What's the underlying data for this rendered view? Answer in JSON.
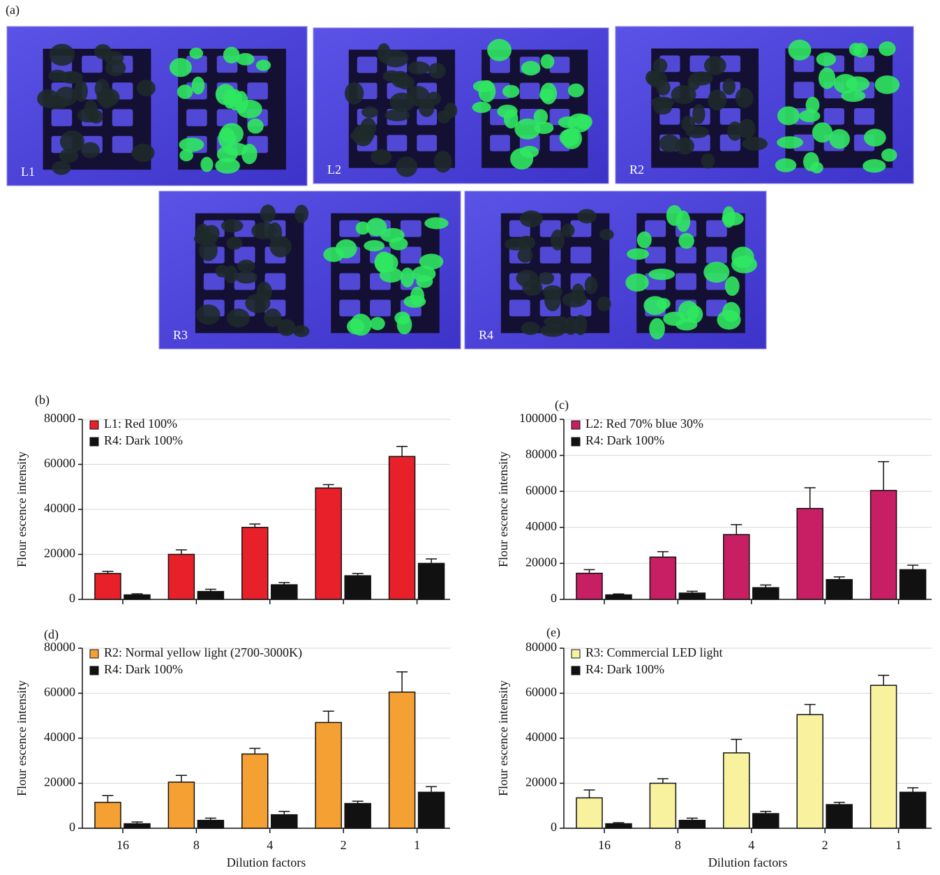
{
  "figure_label": "(a)",
  "photos": [
    {
      "label": "L1"
    },
    {
      "label": "L2"
    },
    {
      "label": "R2"
    },
    {
      "label": "R3"
    },
    {
      "label": "R4"
    }
  ],
  "chart_data": [
    {
      "type": "bar",
      "panel_label": "(b)",
      "ylabel": "Flour escence intensity",
      "categories": [
        null,
        null,
        null,
        null,
        null
      ],
      "series": [
        {
          "name": "L1: Red 100%",
          "color": "#e8202a",
          "values": [
            11500,
            20000,
            32000,
            49500,
            63500
          ],
          "errors": [
            1000,
            2000,
            1500,
            1500,
            4500
          ]
        },
        {
          "name": "R4: Dark 100%",
          "color": "#111111",
          "values": [
            2000,
            3500,
            6500,
            10500,
            16000
          ],
          "errors": [
            500,
            1000,
            1000,
            1000,
            2000
          ]
        }
      ],
      "ylim": [
        0,
        80000
      ],
      "yticks": [
        0,
        20000,
        40000,
        60000,
        80000
      ],
      "grid": true,
      "legend": "upper left"
    },
    {
      "type": "bar",
      "panel_label": "(c)",
      "ylabel": "Flour escence intensity",
      "categories": [
        null,
        null,
        null,
        null,
        null
      ],
      "series": [
        {
          "name": "L2: Red 70% blue 30%",
          "color": "#c81e63",
          "values": [
            14500,
            23500,
            36000,
            50500,
            60500
          ],
          "errors": [
            2000,
            3000,
            5500,
            11500,
            16000
          ]
        },
        {
          "name": "R4: Dark 100%",
          "color": "#111111",
          "values": [
            2500,
            3500,
            6500,
            11000,
            16500
          ],
          "errors": [
            500,
            1000,
            1500,
            1500,
            2500
          ]
        }
      ],
      "ylim": [
        0,
        100000
      ],
      "yticks": [
        0,
        20000,
        40000,
        60000,
        80000,
        100000
      ],
      "grid": true,
      "legend": "upper left"
    },
    {
      "type": "bar",
      "panel_label": "(d)",
      "ylabel": "Flour escence intensity",
      "xlabel": "Dilution factors",
      "categories": [
        "16",
        "8",
        "4",
        "2",
        "1"
      ],
      "series": [
        {
          "name": "R2: Normal yellow light (2700-3000K)",
          "color": "#f5a033",
          "values": [
            11500,
            20500,
            33000,
            47000,
            60500
          ],
          "errors": [
            3000,
            3000,
            2500,
            5000,
            9000
          ]
        },
        {
          "name": "R4: Dark 100%",
          "color": "#111111",
          "values": [
            2000,
            3500,
            6000,
            11000,
            16000
          ],
          "errors": [
            800,
            1000,
            1500,
            1000,
            2500
          ]
        }
      ],
      "ylim": [
        0,
        80000
      ],
      "yticks": [
        0,
        20000,
        40000,
        60000,
        80000
      ],
      "grid": true,
      "legend": "upper left"
    },
    {
      "type": "bar",
      "panel_label": "(e)",
      "ylabel": "Flour escence intensity",
      "xlabel": "Dilution factors",
      "categories": [
        "16",
        "8",
        "4",
        "2",
        "1"
      ],
      "series": [
        {
          "name": "R3: Commercial LED light",
          "color": "#f8f29e",
          "values": [
            13500,
            20000,
            33500,
            50500,
            63500
          ],
          "errors": [
            3500,
            2000,
            6000,
            4500,
            4500
          ]
        },
        {
          "name": "R4: Dark 100%",
          "color": "#111111",
          "values": [
            2000,
            3500,
            6500,
            10500,
            16000
          ],
          "errors": [
            500,
            1000,
            1000,
            1000,
            2000
          ]
        }
      ],
      "ylim": [
        0,
        80000
      ],
      "yticks": [
        0,
        20000,
        40000,
        60000,
        80000
      ],
      "grid": true,
      "legend": "upper left"
    }
  ]
}
